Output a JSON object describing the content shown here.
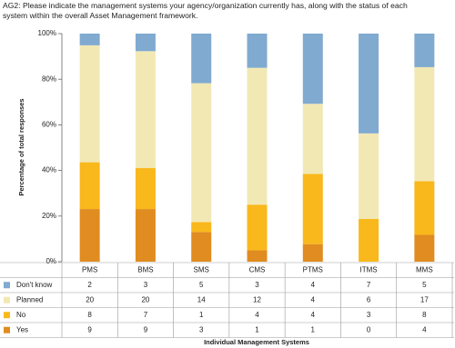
{
  "chart_data": {
    "type": "stacked_bar_100",
    "title": "AG2: Please indicate the management systems your agency/organization currently has, along with the status of each system within the overall Asset Management framework.",
    "y_label": "Percentage of total responses",
    "x_label": "Individual Management Systems",
    "categories": [
      "PMS",
      "BMS",
      "SMS",
      "CMS",
      "PTMS",
      "ITMS",
      "MMS"
    ],
    "series": [
      {
        "name": "Don't know",
        "color": "#80aad0",
        "values": [
          2,
          3,
          5,
          3,
          4,
          7,
          5
        ]
      },
      {
        "name": "Planned",
        "color": "#f2e8b4",
        "values": [
          20,
          20,
          14,
          12,
          4,
          6,
          17
        ]
      },
      {
        "name": "No",
        "color": "#f9b81b",
        "values": [
          8,
          7,
          1,
          4,
          4,
          3,
          8
        ]
      },
      {
        "name": "Yes",
        "color": "#e08c20",
        "values": [
          9,
          9,
          3,
          1,
          1,
          0,
          4
        ]
      }
    ],
    "ylim": [
      0,
      100
    ],
    "yticks": [
      {
        "value": 0,
        "label": "0%"
      },
      {
        "value": 20,
        "label": "20%"
      },
      {
        "value": 40,
        "label": "40%"
      },
      {
        "value": 60,
        "label": "60%"
      },
      {
        "value": 80,
        "label": "80%"
      },
      {
        "value": 100,
        "label": "100%"
      }
    ]
  }
}
